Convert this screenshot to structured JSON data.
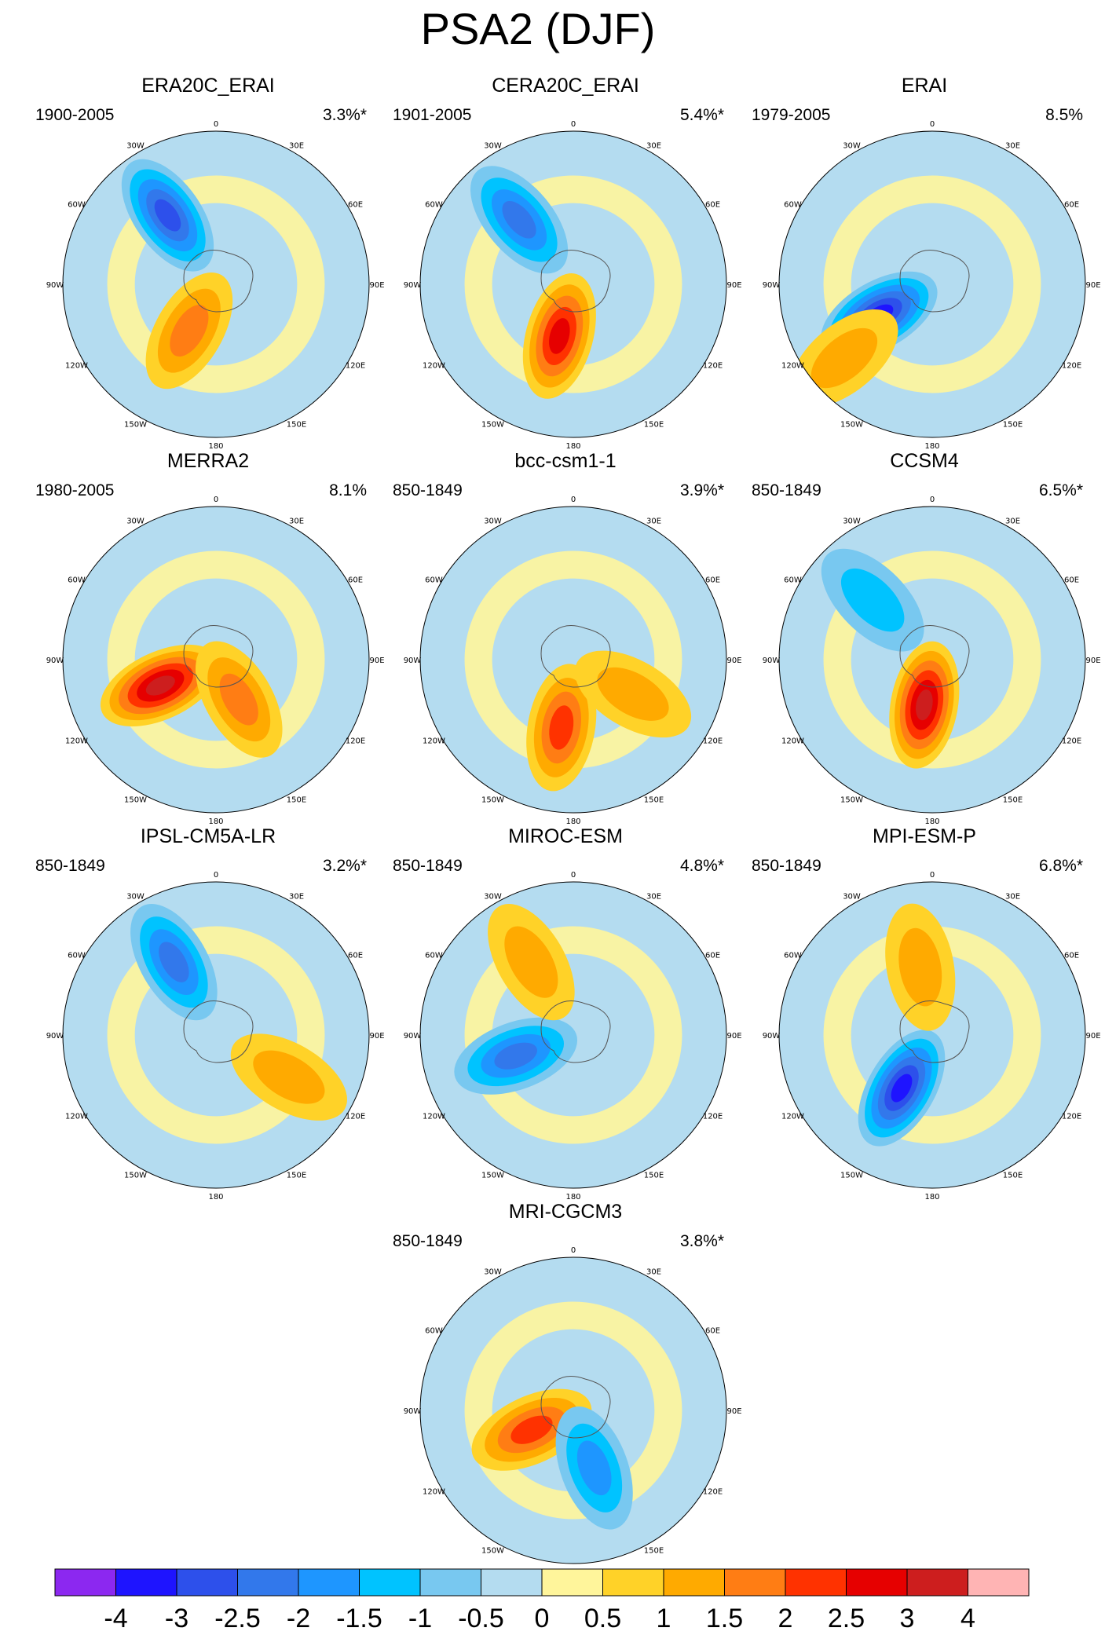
{
  "figure": {
    "title": "PSA2 (DJF)"
  },
  "chart_data": {
    "type": "contour-map-grid",
    "projection": "south-polar-stereographic",
    "variable": "PSA2 pattern (DJF)",
    "panels": [
      {
        "name": "ERA20C_ERAI",
        "period": "1900-2005",
        "variance_explained": "3.3%*"
      },
      {
        "name": "CERA20C_ERAI",
        "period": "1901-2005",
        "variance_explained": "5.4%*"
      },
      {
        "name": "ERAI",
        "period": "1979-2005",
        "variance_explained": "8.5%"
      },
      {
        "name": "MERRA2",
        "period": "1980-2005",
        "variance_explained": "8.1%"
      },
      {
        "name": "bcc-csm1-1",
        "period": "850-1849",
        "variance_explained": "3.9%*"
      },
      {
        "name": "CCSM4",
        "period": "850-1849",
        "variance_explained": "6.5%*"
      },
      {
        "name": "IPSL-CM5A-LR",
        "period": "850-1849",
        "variance_explained": "3.2%*"
      },
      {
        "name": "MIROC-ESM",
        "period": "850-1849",
        "variance_explained": "4.8%*"
      },
      {
        "name": "MPI-ESM-P",
        "period": "850-1849",
        "variance_explained": "6.8%*"
      },
      {
        "name": "MRI-CGCM3",
        "period": "850-1849",
        "variance_explained": "3.8%*"
      }
    ],
    "longitude_labels": [
      "0",
      "30E",
      "60E",
      "90E",
      "120E",
      "150E",
      "180",
      "150W",
      "120W",
      "90W",
      "60W",
      "30W"
    ],
    "colorbar": {
      "levels": [
        "-4",
        "-3",
        "-2.5",
        "-2",
        "-1.5",
        "-1",
        "-0.5",
        "0",
        "0.5",
        "1",
        "1.5",
        "2",
        "2.5",
        "3",
        "4"
      ],
      "colors": [
        "#8c28f0",
        "#1e14ff",
        "#2d50eb",
        "#3278eb",
        "#1e96ff",
        "#00c3ff",
        "#78c8f0",
        "#b4dcf0",
        "#fff59b",
        "#ffd228",
        "#ffaa00",
        "#ff7d14",
        "#ff3200",
        "#e60000",
        "#cd1e1e",
        "#ffb4b4"
      ]
    },
    "anomaly_centers": [
      [
        {
          "lon": -35,
          "r": 0.55,
          "level": -2.5
        },
        {
          "lon": -150,
          "r": 0.35,
          "level": 1.5
        }
      ],
      [
        {
          "lon": -40,
          "r": 0.55,
          "level": -2
        },
        {
          "lon": -165,
          "r": 0.35,
          "level": 2.5
        }
      ],
      [
        {
          "lon": -120,
          "r": 0.4,
          "level": -3
        },
        {
          "lon": -130,
          "r": 0.75,
          "level": 1
        }
      ],
      [
        {
          "lon": -115,
          "r": 0.4,
          "level": 3
        },
        {
          "lon": 150,
          "r": 0.3,
          "level": 1.5
        }
      ],
      [
        {
          "lon": -170,
          "r": 0.45,
          "level": 2
        },
        {
          "lon": 120,
          "r": 0.45,
          "level": 1
        }
      ],
      [
        {
          "lon": -170,
          "r": 0.3,
          "level": 3
        },
        {
          "lon": -45,
          "r": 0.55,
          "level": -1
        }
      ],
      [
        {
          "lon": -30,
          "r": 0.55,
          "level": -2
        },
        {
          "lon": 120,
          "r": 0.55,
          "level": 1
        }
      ],
      [
        {
          "lon": -110,
          "r": 0.4,
          "level": -2
        },
        {
          "lon": -30,
          "r": 0.55,
          "level": 1
        }
      ],
      [
        {
          "lon": -150,
          "r": 0.4,
          "level": -3
        },
        {
          "lon": -10,
          "r": 0.45,
          "level": 1
        }
      ],
      [
        {
          "lon": -115,
          "r": 0.3,
          "level": 2
        },
        {
          "lon": 160,
          "r": 0.4,
          "level": -1.5
        }
      ]
    ]
  }
}
